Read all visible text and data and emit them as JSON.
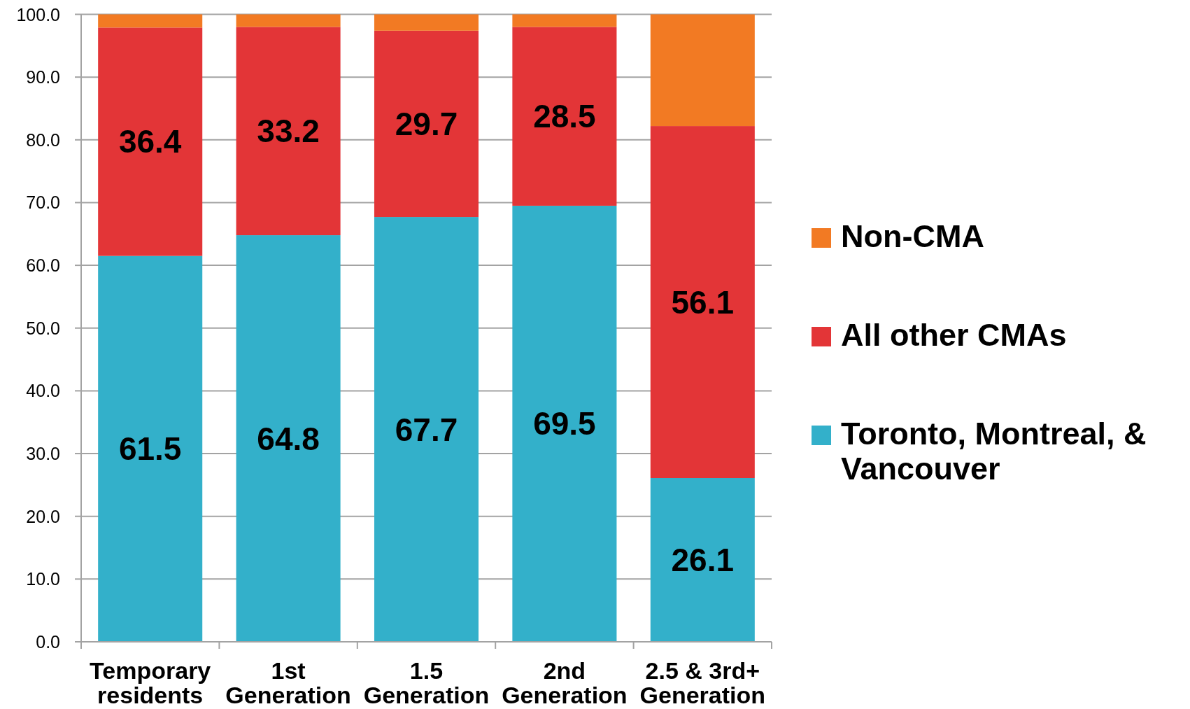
{
  "chart_data": {
    "type": "bar",
    "stacked": true,
    "categories": [
      "Temporary residents",
      "1st Generation",
      "1.5 Generation",
      "2nd Generation",
      "2.5 & 3rd+ Generation"
    ],
    "series": [
      {
        "name": "Toronto, Montreal, & Vancouver",
        "color": "#33b0ca",
        "values": [
          61.5,
          64.8,
          67.7,
          69.5,
          26.1
        ],
        "value_labels": [
          "61.5",
          "64.8",
          "67.7",
          "69.5",
          "26.1"
        ]
      },
      {
        "name": "All other CMAs",
        "color": "#e33537",
        "values": [
          36.4,
          33.2,
          29.7,
          28.5,
          56.1
        ],
        "value_labels": [
          "36.4",
          "33.2",
          "29.7",
          "28.5",
          "56.1"
        ]
      },
      {
        "name": "Non-CMA",
        "color": "#f27a23",
        "values": [
          2.1,
          2.0,
          2.6,
          2.0,
          17.8
        ]
      }
    ],
    "ylim": [
      0,
      100
    ],
    "yticks": [
      {
        "value": 0,
        "label": "0.0"
      },
      {
        "value": 10,
        "label": "10.0"
      },
      {
        "value": 20,
        "label": "20.0"
      },
      {
        "value": 30,
        "label": "30.0"
      },
      {
        "value": 40,
        "label": "40.0"
      },
      {
        "value": 50,
        "label": "50.0"
      },
      {
        "value": 60,
        "label": "60.0"
      },
      {
        "value": 70,
        "label": "70.0"
      },
      {
        "value": 80,
        "label": "80.0"
      },
      {
        "value": 90,
        "label": "90.0"
      },
      {
        "value": 100,
        "label": "100.0"
      }
    ],
    "grid": "y",
    "legend": "right"
  }
}
